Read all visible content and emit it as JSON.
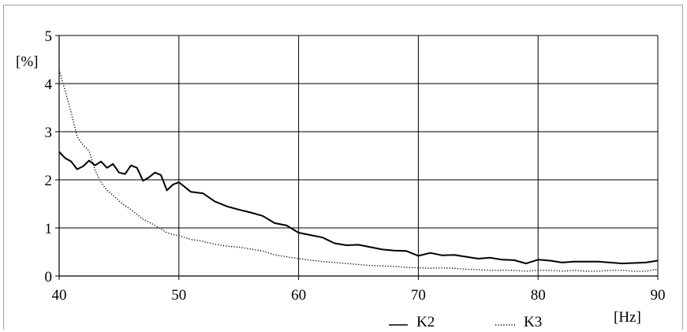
{
  "chart_data": {
    "type": "line",
    "title": "",
    "xlabel": "[Hz]",
    "ylabel": "[%]",
    "xlim": [
      40,
      90
    ],
    "ylim": [
      0,
      5
    ],
    "xticks": [
      40,
      50,
      60,
      70,
      80,
      90
    ],
    "yticks": [
      0,
      1,
      2,
      3,
      4,
      5
    ],
    "grid": true,
    "legend_position": "bottom-right",
    "series": [
      {
        "name": "K2",
        "style": "solid",
        "color": "#000000",
        "x": [
          40,
          40.5,
          41,
          41.5,
          42,
          42.5,
          43,
          43.5,
          44,
          44.5,
          45,
          45.5,
          46,
          46.5,
          47,
          47.5,
          48,
          48.5,
          49,
          49.5,
          50,
          51,
          52,
          53,
          54,
          55,
          56,
          57,
          58,
          59,
          60,
          61,
          62,
          63,
          64,
          65,
          66,
          67,
          68,
          69,
          70,
          71,
          72,
          73,
          74,
          75,
          76,
          77,
          78,
          79,
          80,
          81,
          82,
          83,
          84,
          85,
          86,
          87,
          88,
          89,
          90
        ],
        "y": [
          2.58,
          2.45,
          2.38,
          2.22,
          2.28,
          2.4,
          2.3,
          2.38,
          2.25,
          2.33,
          2.15,
          2.12,
          2.3,
          2.25,
          1.98,
          2.05,
          2.15,
          2.1,
          1.78,
          1.9,
          1.95,
          1.75,
          1.72,
          1.55,
          1.45,
          1.38,
          1.32,
          1.25,
          1.1,
          1.05,
          0.9,
          0.85,
          0.8,
          0.68,
          0.64,
          0.65,
          0.6,
          0.55,
          0.53,
          0.52,
          0.42,
          0.48,
          0.43,
          0.44,
          0.4,
          0.36,
          0.38,
          0.34,
          0.33,
          0.26,
          0.34,
          0.32,
          0.28,
          0.3,
          0.3,
          0.3,
          0.28,
          0.26,
          0.27,
          0.28,
          0.32
        ]
      },
      {
        "name": "K3",
        "style": "dotted",
        "color": "#000000",
        "x": [
          40,
          40.5,
          41,
          41.5,
          42,
          42.5,
          43,
          43.5,
          44,
          44.5,
          45,
          45.5,
          46,
          46.5,
          47,
          47.5,
          48,
          48.5,
          49,
          49.5,
          50,
          51,
          52,
          53,
          54,
          55,
          56,
          57,
          58,
          59,
          60,
          61,
          62,
          63,
          64,
          65,
          66,
          67,
          68,
          69,
          70,
          71,
          72,
          73,
          74,
          75,
          76,
          77,
          78,
          79,
          80,
          81,
          82,
          83,
          84,
          85,
          86,
          87,
          88,
          89,
          90
        ],
        "y": [
          4.28,
          3.85,
          3.4,
          2.9,
          2.72,
          2.6,
          2.2,
          1.95,
          1.78,
          1.68,
          1.56,
          1.46,
          1.38,
          1.28,
          1.18,
          1.12,
          1.05,
          0.98,
          0.9,
          0.86,
          0.84,
          0.76,
          0.72,
          0.66,
          0.62,
          0.6,
          0.56,
          0.52,
          0.44,
          0.4,
          0.36,
          0.33,
          0.3,
          0.28,
          0.26,
          0.24,
          0.22,
          0.21,
          0.2,
          0.18,
          0.17,
          0.16,
          0.17,
          0.16,
          0.14,
          0.13,
          0.12,
          0.12,
          0.12,
          0.1,
          0.12,
          0.12,
          0.1,
          0.12,
          0.1,
          0.1,
          0.12,
          0.12,
          0.1,
          0.1,
          0.14
        ]
      }
    ]
  }
}
